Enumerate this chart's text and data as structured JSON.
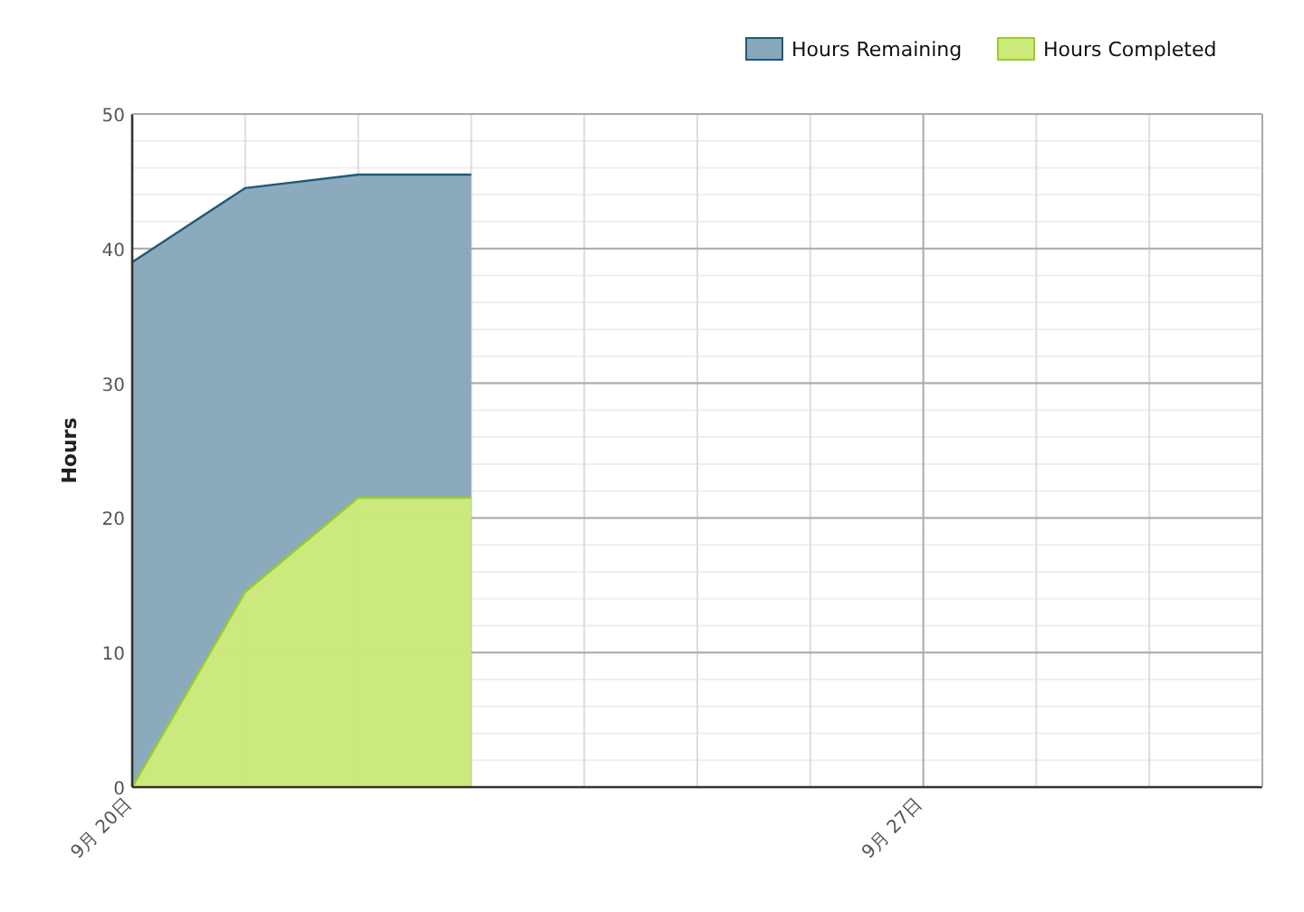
{
  "chart_data": {
    "type": "area",
    "ylabel": "Hours",
    "x": [
      "--09-20",
      "--09-21",
      "--09-22",
      "--09-23"
    ],
    "series": [
      {
        "name": "Hours Remaining",
        "color": "#87a8bb",
        "values": [
          39,
          44.5,
          45.5,
          45.5
        ]
      },
      {
        "name": "Hours Completed",
        "color": "#cdea7a",
        "values": [
          0,
          14.5,
          21.5,
          21.5
        ]
      }
    ],
    "xlim": [
      "--09-20",
      "--09-30"
    ],
    "xticks": [
      {
        "value": "--09-20",
        "label": "9月 20日"
      },
      {
        "value": "--09-21",
        "label": null
      },
      {
        "value": "--09-22",
        "label": null
      },
      {
        "value": "--09-23",
        "label": null
      },
      {
        "value": "--09-24",
        "label": null
      },
      {
        "value": "--09-25",
        "label": null
      },
      {
        "value": "--09-26",
        "label": null
      },
      {
        "value": "--09-27",
        "label": "9月 27日"
      },
      {
        "value": "--09-28",
        "label": null
      },
      {
        "value": "--09-29",
        "label": null
      },
      {
        "value": "--09-30",
        "label": null
      }
    ],
    "ylim": [
      0,
      50
    ],
    "yticks": [
      0,
      10,
      20,
      30,
      40,
      50
    ],
    "grid": true,
    "legend": "top right"
  }
}
